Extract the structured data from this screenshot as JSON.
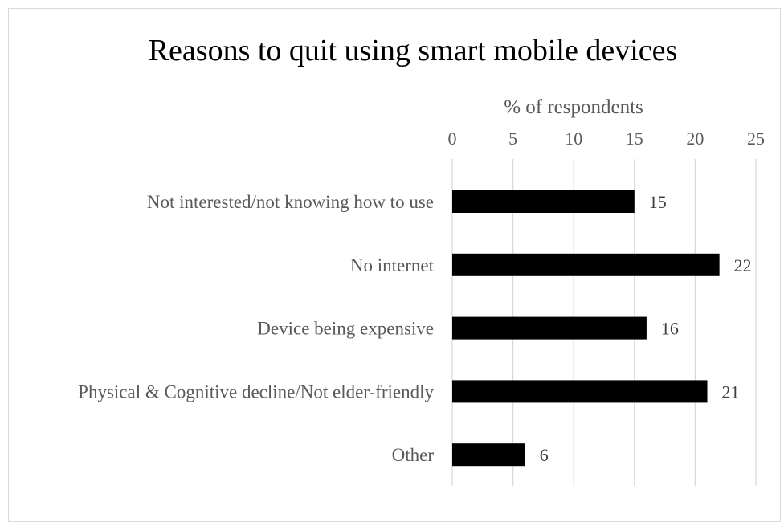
{
  "chart_data": {
    "type": "bar",
    "orientation": "horizontal",
    "title": "Reasons to quit using smart mobile devices",
    "xlabel": "% of respondents",
    "ylabel": "",
    "xlim": [
      0,
      25
    ],
    "ticks": [
      0,
      5,
      10,
      15,
      20,
      25
    ],
    "tick_labels": [
      "0",
      "5",
      "10",
      "15",
      "20",
      "25"
    ],
    "axis_position": "top",
    "grid": true,
    "legend": "none",
    "categories": [
      "Not interested/not knowing how to use",
      "No internet",
      "Device being expensive",
      "Physical & Cognitive decline/Not elder-friendly",
      "Other"
    ],
    "values": [
      15,
      22,
      16,
      21,
      6
    ],
    "data_labels": [
      "15",
      "22",
      "16",
      "21",
      "6"
    ],
    "colors": {
      "bar": "#000000",
      "grid": "#d9d9d9",
      "text": "#595959",
      "title": "#000000"
    }
  }
}
